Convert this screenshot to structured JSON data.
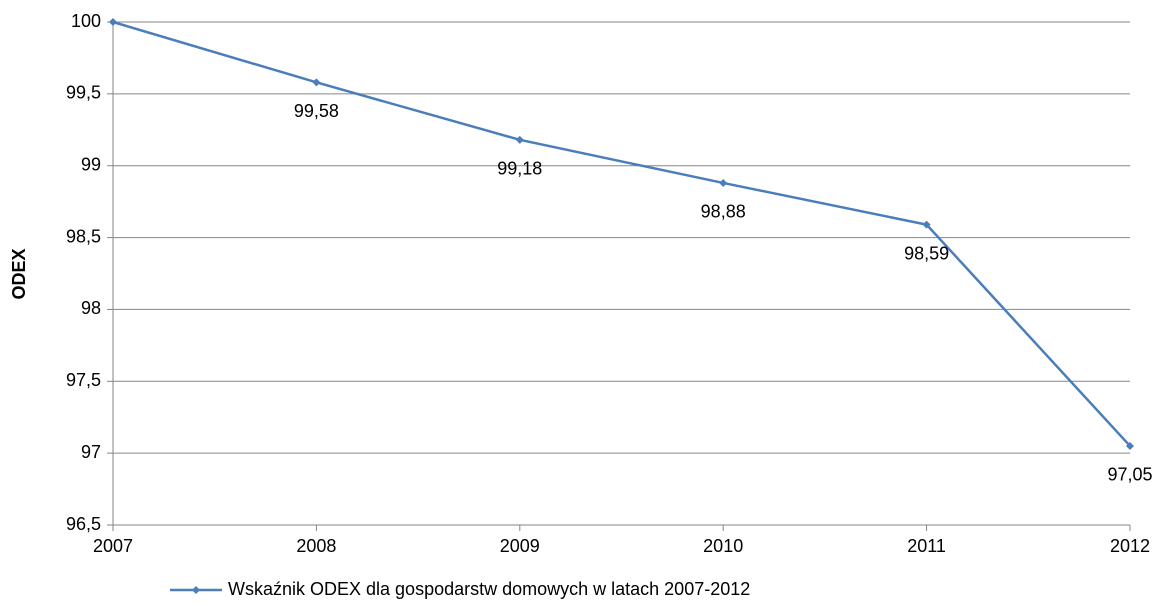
{
  "chart_data": {
    "type": "line",
    "y_label": "ODEX",
    "categories": [
      "2007",
      "2008",
      "2009",
      "2010",
      "2011",
      "2012"
    ],
    "series": [
      {
        "name": "Wskaźnik ODEX dla gospodarstw domowych w latach 2007-2012",
        "color": "#4a7ebb",
        "values": [
          100,
          99.58,
          99.18,
          98.88,
          98.59,
          97.05
        ],
        "value_labels": [
          null,
          "99,58",
          "99,18",
          "98,88",
          "98,59",
          "97,05"
        ]
      }
    ],
    "ylim": [
      96.5,
      100
    ],
    "yticks": [
      {
        "value": 96.5,
        "label": "96,5"
      },
      97,
      {
        "value": 97.5,
        "label": "97,5"
      },
      98,
      {
        "value": 98.5,
        "label": "98,5"
      },
      99,
      {
        "value": 99.5,
        "label": "99,5"
      },
      100
    ],
    "grid": true,
    "legend": "bottom"
  }
}
